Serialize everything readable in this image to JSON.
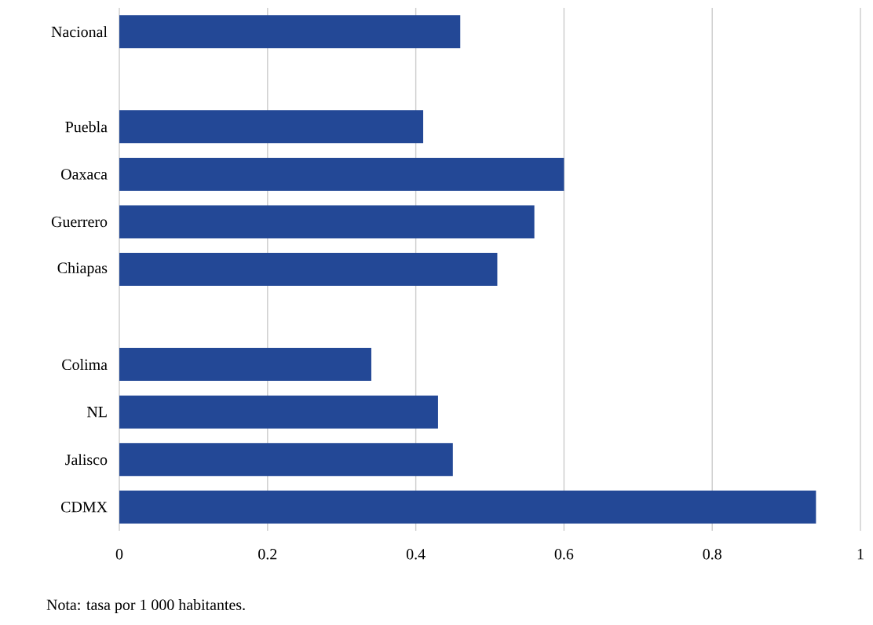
{
  "chart_data": {
    "type": "bar",
    "orientation": "horizontal",
    "categories": [
      "Nacional",
      null,
      "Puebla",
      "Oaxaca",
      "Guerrero",
      "Chiapas",
      null,
      "Colima",
      "NL",
      "Jalisco",
      "CDMX"
    ],
    "values": [
      0.46,
      null,
      0.41,
      0.6,
      0.56,
      0.51,
      null,
      0.34,
      0.43,
      0.45,
      0.94
    ],
    "color": "#234896",
    "xlim": [
      0,
      1
    ],
    "xticks": [
      0,
      0.2,
      0.4,
      0.6,
      0.8,
      1
    ],
    "grid": "x",
    "annotations": [
      "Nota: tasa por 1 000 habitantes."
    ]
  }
}
